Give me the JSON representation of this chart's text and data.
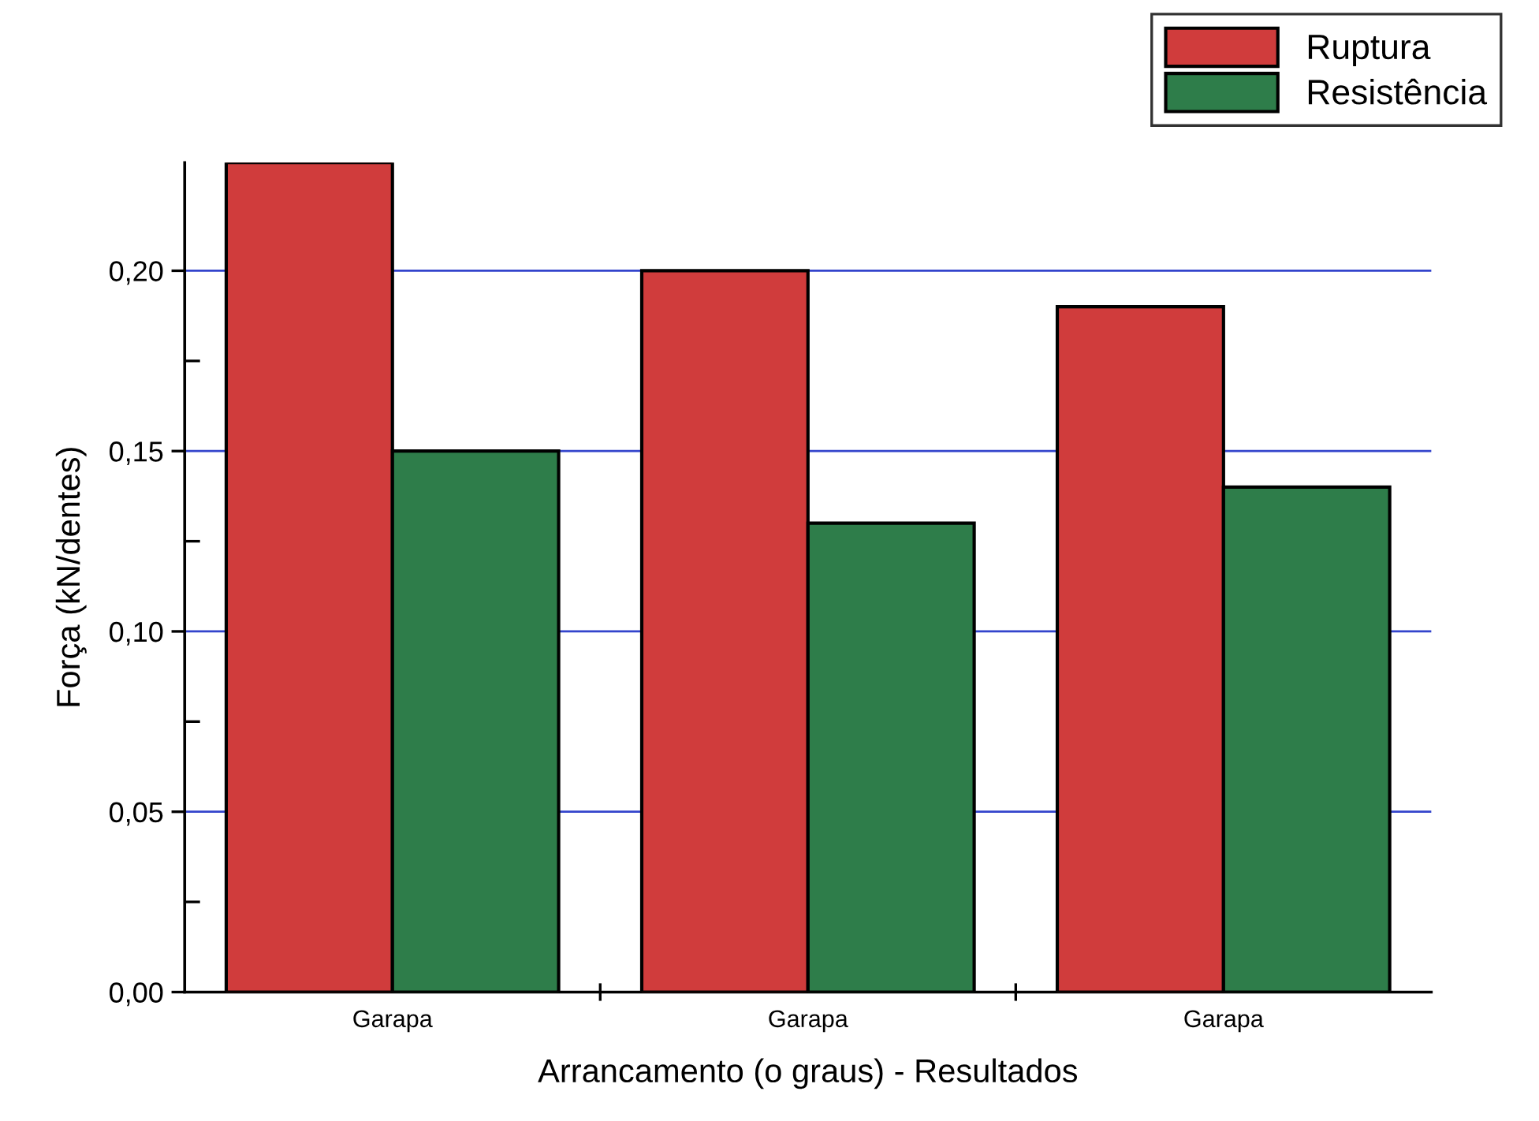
{
  "chart_data": {
    "type": "bar",
    "xlabel": "Arrancamento (o graus) - Resultados",
    "ylabel": "Força (kN/dentes)",
    "categories": [
      "Garapa",
      "Garapa",
      "Garapa"
    ],
    "series": [
      {
        "name": "Ruptura",
        "color": "#d03c3c",
        "values": [
          0.23,
          0.2,
          0.19
        ]
      },
      {
        "name": "Resistência",
        "color": "#2e7d4a",
        "values": [
          0.15,
          0.13,
          0.14
        ]
      }
    ],
    "ylim": [
      0,
      0.23
    ],
    "yticks": [
      {
        "value": 0,
        "label": "0,00"
      },
      {
        "value": 0.05,
        "label": "0,05"
      },
      {
        "value": 0.1,
        "label": "0,10"
      },
      {
        "value": 0.15,
        "label": "0,15"
      },
      {
        "value": 0.2,
        "label": "0,20"
      }
    ],
    "grid": "y",
    "legend": "top right"
  }
}
